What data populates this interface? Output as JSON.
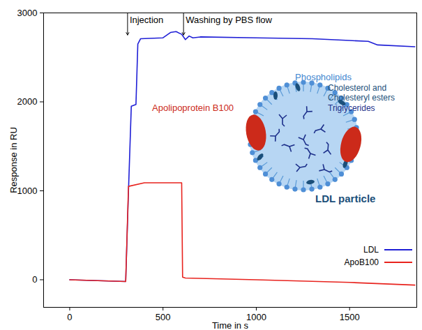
{
  "chart_data": {
    "type": "line",
    "x_label": "Time in s",
    "y_label": "Response in RU",
    "xlim": [
      -140,
      1860
    ],
    "xticks": [
      0,
      500,
      1000,
      1500
    ],
    "ylim": [
      -310,
      3000
    ],
    "yticks": [
      0,
      1000,
      2000,
      3000
    ],
    "grid": false,
    "legend": "bottom-right",
    "annotations": [
      {
        "text": "Injection",
        "x": 310
      },
      {
        "text": "Washing by PBS flow",
        "x": 610
      }
    ],
    "inset_labels": {
      "title": "LDL particle",
      "phospholipids": "Phospholipids",
      "cholesterol": "Cholesterol and Cholesteryl esters",
      "triglycerides": "Triglycerides",
      "protein": "Apolipoprotein B100"
    },
    "series": [
      {
        "name": "LDL",
        "color": "#1f1fd6",
        "x": [
          0,
          300,
          315,
          330,
          355,
          365,
          380,
          500,
          540,
          570,
          600,
          620,
          640,
          660,
          700,
          1000,
          1300,
          1500,
          1600,
          1650,
          1850
        ],
        "values": [
          0,
          -20,
          1000,
          1950,
          1970,
          2650,
          2710,
          2720,
          2780,
          2790,
          2760,
          2700,
          2740,
          2720,
          2730,
          2720,
          2710,
          2690,
          2680,
          2640,
          2620
        ]
      },
      {
        "name": "ApoB100",
        "color": "#e8231e",
        "x": [
          0,
          300,
          315,
          400,
          600,
          605,
          620,
          1000,
          1500,
          1850
        ],
        "values": [
          0,
          -20,
          1050,
          1090,
          1090,
          30,
          20,
          0,
          -30,
          -60
        ]
      }
    ]
  }
}
